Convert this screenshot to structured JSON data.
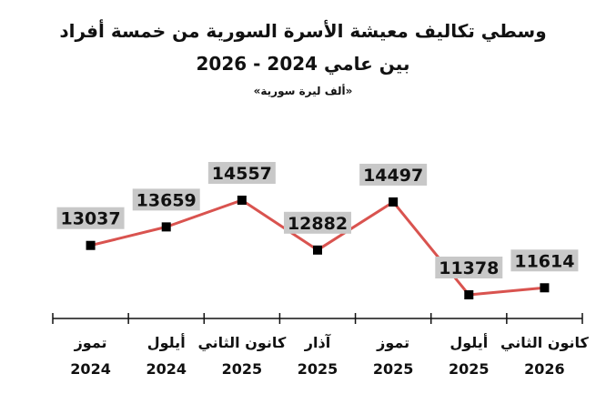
{
  "title": "وسطي تكاليف معيشة الأسرة السورية من خمسة أفراد",
  "subtitle": "بين عامي 2024 - 2026",
  "unit": "«ألف ليرة سورية»",
  "colors": {
    "line": "#d9534f",
    "marker": "#000000",
    "label_bg": "#c8c8c8",
    "axis": "#111111"
  },
  "chart_data": {
    "type": "line",
    "title": "وسطي تكاليف معيشة الأسرة السورية من خمسة أفراد",
    "subtitle": "بين عامي 2024 - 2026",
    "unit": "«ألف ليرة سورية»",
    "categories": [
      {
        "month": "تموز",
        "year": "2024"
      },
      {
        "month": "أيلول",
        "year": "2024"
      },
      {
        "month": "كانون الثاني",
        "year": "2025"
      },
      {
        "month": "آذار",
        "year": "2025"
      },
      {
        "month": "تموز",
        "year": "2025"
      },
      {
        "month": "أيلول",
        "year": "2025"
      },
      {
        "month": "كانون الثاني",
        "year": "2026"
      }
    ],
    "values": [
      13037,
      13659,
      14557,
      12882,
      14497,
      11378,
      11614
    ],
    "ylim": [
      10000,
      16000
    ],
    "grid": false,
    "legend": "none"
  }
}
